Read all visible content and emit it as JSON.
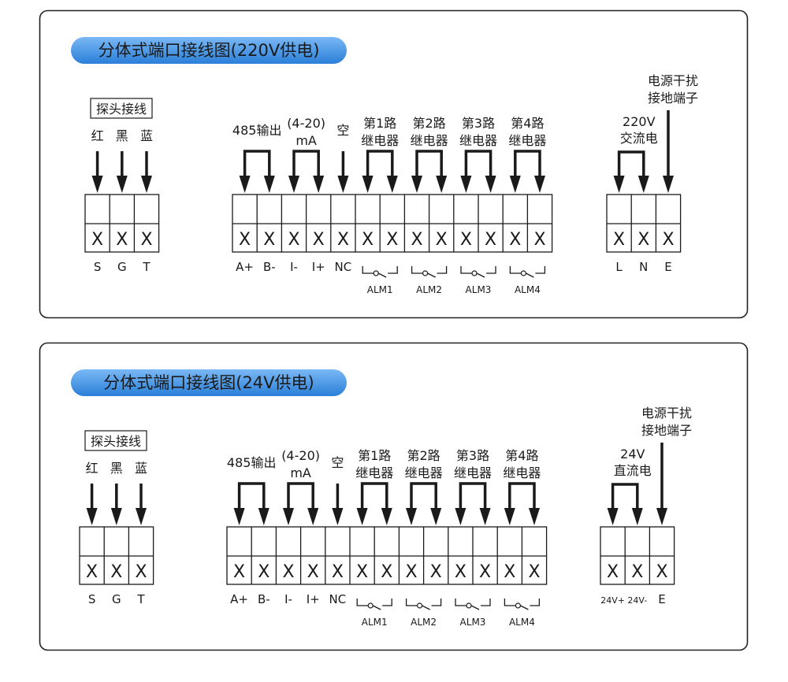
{
  "colors": {
    "pill_top": "#6fb0f2",
    "pill_bottom": "#2a7fd8",
    "line": "#1a1a1a"
  },
  "terminal_mark": "X",
  "panels": [
    {
      "title": "分体式端口接线图(220V供电)",
      "probe": {
        "label": "探头接线",
        "colors": [
          "红",
          "黑",
          "蓝"
        ],
        "terminals": [
          "S",
          "G",
          "T"
        ]
      },
      "main": {
        "groups": [
          {
            "label": [
              "485输出"
            ],
            "span": 2
          },
          {
            "label": [
              "(4-20)",
              "mA"
            ],
            "span": 2
          },
          {
            "label": [
              "空"
            ],
            "span": 1
          },
          {
            "label": [
              "第1路",
              "继电器"
            ],
            "span": 2,
            "relay": "ALM1"
          },
          {
            "label": [
              "第2路",
              "继电器"
            ],
            "span": 2,
            "relay": "ALM2"
          },
          {
            "label": [
              "第3路",
              "继电器"
            ],
            "span": 2,
            "relay": "ALM3"
          },
          {
            "label": [
              "第4路",
              "继电器"
            ],
            "span": 2,
            "relay": "ALM4"
          }
        ],
        "terminals": [
          "A+",
          "B-",
          "I-",
          "I+",
          "NC"
        ]
      },
      "power": {
        "label": [
          "220V",
          "交流电"
        ],
        "ground_label": [
          "电源干扰",
          "接地端子"
        ],
        "terminals": [
          "L",
          "N",
          "E"
        ]
      }
    },
    {
      "title": "分体式端口接线图(24V供电)",
      "probe": {
        "label": "探头接线",
        "colors": [
          "红",
          "黑",
          "蓝"
        ],
        "terminals": [
          "S",
          "G",
          "T"
        ]
      },
      "main": {
        "groups": [
          {
            "label": [
              "485输出"
            ],
            "span": 2
          },
          {
            "label": [
              "(4-20)",
              "mA"
            ],
            "span": 2
          },
          {
            "label": [
              "空"
            ],
            "span": 1
          },
          {
            "label": [
              "第1路",
              "继电器"
            ],
            "span": 2,
            "relay": "ALM1"
          },
          {
            "label": [
              "第2路",
              "继电器"
            ],
            "span": 2,
            "relay": "ALM2"
          },
          {
            "label": [
              "第3路",
              "继电器"
            ],
            "span": 2,
            "relay": "ALM3"
          },
          {
            "label": [
              "第4路",
              "继电器"
            ],
            "span": 2,
            "relay": "ALM4"
          }
        ],
        "terminals": [
          "A+",
          "B-",
          "I-",
          "I+",
          "NC"
        ]
      },
      "power": {
        "label": [
          "24V",
          "直流电"
        ],
        "ground_label": [
          "电源干扰",
          "接地端子"
        ],
        "terminals": [
          "24V+",
          "24V-",
          "E"
        ]
      }
    }
  ]
}
